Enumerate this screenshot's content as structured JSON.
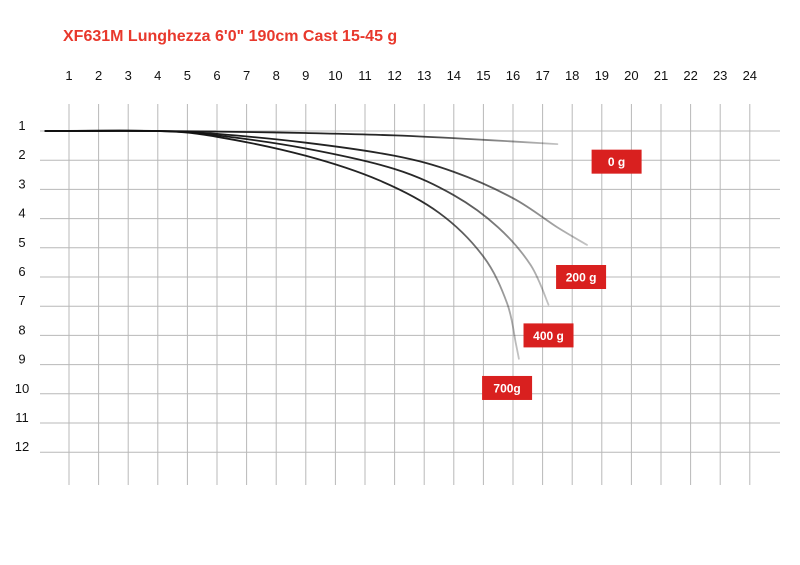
{
  "chart_data": {
    "type": "line",
    "title": "XF631M Lunghezza 6'0\" 190cm Cast 15-45 g",
    "x_ticks": [
      "1",
      "2",
      "3",
      "4",
      "5",
      "6",
      "7",
      "8",
      "9",
      "10",
      "11",
      "12",
      "13",
      "14",
      "15",
      "16",
      "17",
      "18",
      "19",
      "20",
      "21",
      "22",
      "23",
      "24"
    ],
    "y_ticks": [
      "1",
      "2",
      "3",
      "4",
      "5",
      "6",
      "7",
      "8",
      "9",
      "10",
      "11",
      "12"
    ],
    "xlim": [
      1,
      24
    ],
    "ylim": [
      1,
      12
    ],
    "grid": true,
    "series": [
      {
        "name": "0 g",
        "color": "#111111",
        "points": [
          [
            0.2,
            1.0
          ],
          [
            4,
            1.0
          ],
          [
            6,
            1.02
          ],
          [
            9,
            1.07
          ],
          [
            12,
            1.15
          ],
          [
            15,
            1.3
          ],
          [
            17.5,
            1.45
          ]
        ],
        "label_at": [
          19.5,
          2.05
        ]
      },
      {
        "name": "200 g",
        "color": "#111111",
        "points": [
          [
            0.2,
            1.0
          ],
          [
            4,
            1.0
          ],
          [
            6,
            1.1
          ],
          [
            9,
            1.4
          ],
          [
            12,
            1.85
          ],
          [
            14,
            2.4
          ],
          [
            16,
            3.3
          ],
          [
            17.5,
            4.3
          ],
          [
            18.5,
            4.9
          ]
        ],
        "label_at": [
          18.3,
          6.0
        ]
      },
      {
        "name": "400 g",
        "color": "#111111",
        "points": [
          [
            0.2,
            1.0
          ],
          [
            4,
            1.0
          ],
          [
            6,
            1.15
          ],
          [
            9,
            1.6
          ],
          [
            12,
            2.3
          ],
          [
            14,
            3.2
          ],
          [
            15.5,
            4.3
          ],
          [
            16.6,
            5.6
          ],
          [
            17.2,
            6.95
          ]
        ],
        "label_at": [
          17.2,
          8.0
        ]
      },
      {
        "name": "700g",
        "color": "#111111",
        "points": [
          [
            0.2,
            1.0
          ],
          [
            4,
            1.0
          ],
          [
            6,
            1.2
          ],
          [
            9,
            1.85
          ],
          [
            11.5,
            2.7
          ],
          [
            13.5,
            3.8
          ],
          [
            15,
            5.3
          ],
          [
            15.8,
            6.9
          ],
          [
            16.1,
            8.3
          ],
          [
            16.2,
            8.8
          ]
        ],
        "label_at": [
          15.8,
          9.8
        ]
      }
    ],
    "badge_color": "#d9201f"
  }
}
